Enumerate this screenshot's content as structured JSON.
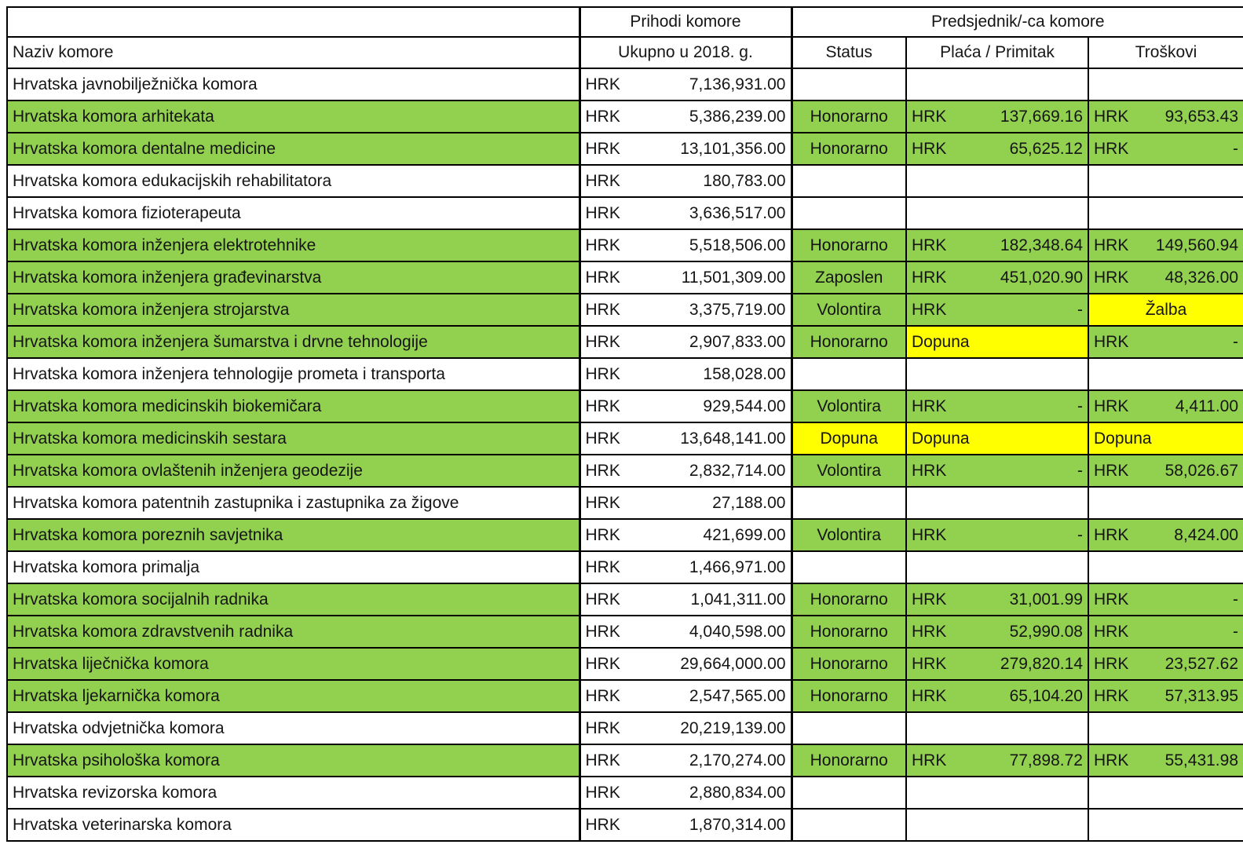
{
  "header": {
    "income_group": "Prihodi komore",
    "president_group": "Predsjednik/-ca komore",
    "name_col": "Naziv komore",
    "income_col": "Ukupno u 2018. g.",
    "status_col": "Status",
    "salary_col": "Plaća / Primitak",
    "costs_col": "Troškovi"
  },
  "currency": "HRK",
  "dash": "-",
  "colors": {
    "green": "#92D050",
    "yellow": "#FFFF00",
    "white": "#FFFFFF",
    "border": "#000000"
  },
  "rows": [
    {
      "name": "Hrvatska javnobilježnička komora",
      "income": "7,136,931.00",
      "green": false,
      "status": null,
      "salary": {
        "type": "empty"
      },
      "costs": {
        "type": "empty"
      }
    },
    {
      "name": "Hrvatska komora arhitekata",
      "income": "5,386,239.00",
      "green": true,
      "status": {
        "text": "Honorarno",
        "bg": "green"
      },
      "salary": {
        "type": "amount",
        "value": "137,669.16",
        "bg": "green"
      },
      "costs": {
        "type": "amount",
        "value": "93,653.43",
        "bg": "green"
      }
    },
    {
      "name": "Hrvatska komora dentalne medicine",
      "income": "13,101,356.00",
      "green": true,
      "status": {
        "text": "Honorarno",
        "bg": "green"
      },
      "salary": {
        "type": "amount",
        "value": "65,625.12",
        "bg": "green"
      },
      "costs": {
        "type": "dash",
        "bg": "green"
      }
    },
    {
      "name": "Hrvatska komora edukacijskih rehabilitatora",
      "income": "180,783.00",
      "green": false,
      "status": null,
      "salary": {
        "type": "empty"
      },
      "costs": {
        "type": "empty"
      }
    },
    {
      "name": "Hrvatska komora fizioterapeuta",
      "income": "3,636,517.00",
      "green": false,
      "status": null,
      "salary": {
        "type": "empty"
      },
      "costs": {
        "type": "empty"
      }
    },
    {
      "name": "Hrvatska komora inženjera elektrotehnike",
      "income": "5,518,506.00",
      "green": true,
      "status": {
        "text": "Honorarno",
        "bg": "green"
      },
      "salary": {
        "type": "amount",
        "value": "182,348.64",
        "bg": "green"
      },
      "costs": {
        "type": "amount",
        "value": "149,560.94",
        "bg": "green"
      }
    },
    {
      "name": "Hrvatska komora inženjera građevinarstva",
      "income": "11,501,309.00",
      "green": true,
      "status": {
        "text": "Zaposlen",
        "bg": "green"
      },
      "salary": {
        "type": "amount",
        "value": "451,020.90",
        "bg": "green"
      },
      "costs": {
        "type": "amount",
        "value": "48,326.00",
        "bg": "green"
      }
    },
    {
      "name": "Hrvatska komora inženjera strojarstva",
      "income": "3,375,719.00",
      "green": true,
      "status": {
        "text": "Volontira",
        "bg": "green"
      },
      "salary": {
        "type": "dash",
        "bg": "green"
      },
      "costs": {
        "type": "label",
        "text": "Žalba",
        "bg": "yellow",
        "align": "center"
      }
    },
    {
      "name": "Hrvatska komora inženjera šumarstva i drvne tehnologije",
      "income": "2,907,833.00",
      "green": true,
      "status": {
        "text": "Honorarno",
        "bg": "green"
      },
      "salary": {
        "type": "label",
        "text": "Dopuna",
        "bg": "yellow",
        "align": "left"
      },
      "costs": {
        "type": "dash",
        "bg": "green"
      }
    },
    {
      "name": "Hrvatska komora inženjera tehnologije prometa i transporta",
      "income": "158,028.00",
      "green": false,
      "status": null,
      "salary": {
        "type": "empty"
      },
      "costs": {
        "type": "empty"
      }
    },
    {
      "name": "Hrvatska komora medicinskih biokemičara",
      "income": "929,544.00",
      "green": true,
      "status": {
        "text": "Volontira",
        "bg": "green"
      },
      "salary": {
        "type": "dash",
        "bg": "green"
      },
      "costs": {
        "type": "amount",
        "value": "4,411.00",
        "bg": "green"
      }
    },
    {
      "name": "Hrvatska komora medicinskih sestara",
      "income": "13,648,141.00",
      "green": true,
      "status": {
        "text": "Dopuna",
        "bg": "yellow"
      },
      "salary": {
        "type": "label",
        "text": "Dopuna",
        "bg": "yellow",
        "align": "left"
      },
      "costs": {
        "type": "label",
        "text": "Dopuna",
        "bg": "yellow",
        "align": "left"
      }
    },
    {
      "name": "Hrvatska komora ovlaštenih inženjera geodezije",
      "income": "2,832,714.00",
      "green": true,
      "status": {
        "text": "Volontira",
        "bg": "green"
      },
      "salary": {
        "type": "dash",
        "bg": "green"
      },
      "costs": {
        "type": "amount",
        "value": "58,026.67",
        "bg": "green"
      }
    },
    {
      "name": "Hrvatska komora patentnih zastupnika i zastupnika za žigove",
      "income": "27,188.00",
      "green": false,
      "status": null,
      "salary": {
        "type": "empty"
      },
      "costs": {
        "type": "empty"
      }
    },
    {
      "name": "Hrvatska komora poreznih savjetnika",
      "income": "421,699.00",
      "green": true,
      "status": {
        "text": "Volontira",
        "bg": "green"
      },
      "salary": {
        "type": "dash",
        "bg": "green"
      },
      "costs": {
        "type": "amount",
        "value": "8,424.00",
        "bg": "green"
      }
    },
    {
      "name": "Hrvatska komora primalja",
      "income": "1,466,971.00",
      "green": false,
      "status": null,
      "salary": {
        "type": "empty"
      },
      "costs": {
        "type": "empty"
      }
    },
    {
      "name": "Hrvatska komora socijalnih radnika",
      "income": "1,041,311.00",
      "green": true,
      "status": {
        "text": "Honorarno",
        "bg": "green"
      },
      "salary": {
        "type": "amount",
        "value": "31,001.99",
        "bg": "green"
      },
      "costs": {
        "type": "dash",
        "bg": "green"
      }
    },
    {
      "name": "Hrvatska komora zdravstvenih radnika",
      "income": "4,040,598.00",
      "green": true,
      "status": {
        "text": "Honorarno",
        "bg": "green"
      },
      "salary": {
        "type": "amount",
        "value": "52,990.08",
        "bg": "green"
      },
      "costs": {
        "type": "dash",
        "bg": "green"
      }
    },
    {
      "name": "Hrvatska liječnička komora",
      "income": "29,664,000.00",
      "green": true,
      "status": {
        "text": "Honorarno",
        "bg": "green"
      },
      "salary": {
        "type": "amount",
        "value": "279,820.14",
        "bg": "green"
      },
      "costs": {
        "type": "amount",
        "value": "23,527.62",
        "bg": "green"
      }
    },
    {
      "name": "Hrvatska ljekarnička komora",
      "income": "2,547,565.00",
      "green": true,
      "status": {
        "text": "Honorarno",
        "bg": "green"
      },
      "salary": {
        "type": "amount",
        "value": "65,104.20",
        "bg": "green"
      },
      "costs": {
        "type": "amount",
        "value": "57,313.95",
        "bg": "green"
      }
    },
    {
      "name": "Hrvatska odvjetnička komora",
      "income": "20,219,139.00",
      "green": false,
      "status": null,
      "salary": {
        "type": "empty"
      },
      "costs": {
        "type": "empty"
      }
    },
    {
      "name": "Hrvatska psihološka komora",
      "income": "2,170,274.00",
      "green": true,
      "status": {
        "text": "Honorarno",
        "bg": "green"
      },
      "salary": {
        "type": "amount",
        "value": "77,898.72",
        "bg": "green"
      },
      "costs": {
        "type": "amount",
        "value": "55,431.98",
        "bg": "green"
      }
    },
    {
      "name": "Hrvatska revizorska komora",
      "income": "2,880,834.00",
      "green": false,
      "status": null,
      "salary": {
        "type": "empty"
      },
      "costs": {
        "type": "empty"
      }
    },
    {
      "name": "Hrvatska veterinarska komora",
      "income": "1,870,314.00",
      "green": false,
      "status": null,
      "salary": {
        "type": "empty"
      },
      "costs": {
        "type": "empty"
      }
    }
  ]
}
